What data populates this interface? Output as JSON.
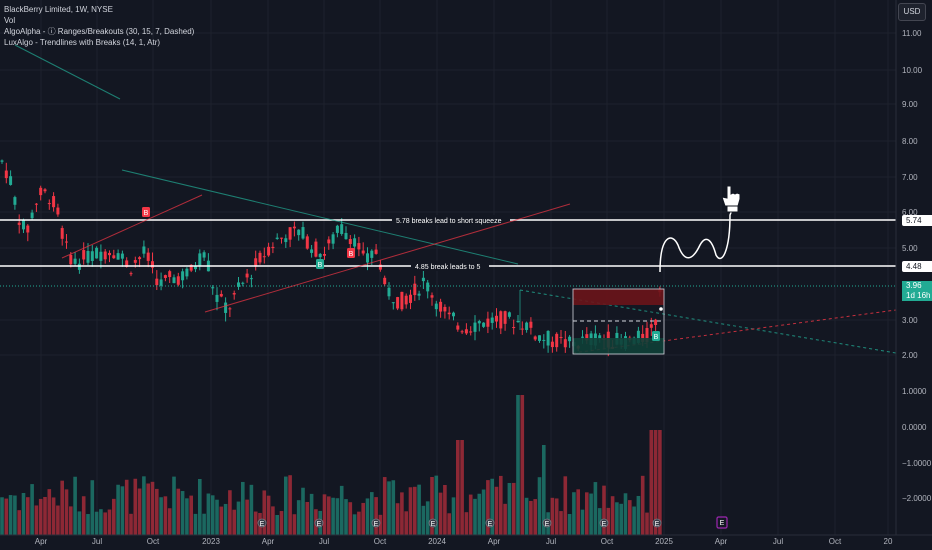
{
  "legend": {
    "title": "BlackBerry Limited, 1W, NYSE",
    "vol": "Vol",
    "ind1": "AlgoAlpha - ⓘ Ranges/Breakouts (30, 15, 7, Dashed)",
    "ind2": "LuxAlgo - Trendlines with Breaks (14, 1, Atr)"
  },
  "currency": "USD",
  "price_axis": [
    "11.00",
    "10.00",
    "9.00",
    "8.00",
    "7.00",
    "6.00",
    "5.00",
    "3.00",
    "2.00"
  ],
  "vol_axis": [
    "1.0000",
    "0.0000",
    "−1.0000",
    "−2.0000"
  ],
  "time_axis": [
    "Apr",
    "Jul",
    "Oct",
    "2023",
    "Apr",
    "Jul",
    "Oct",
    "2024",
    "Apr",
    "Jul",
    "Oct",
    "2025",
    "Apr",
    "Jul",
    "Oct",
    "20"
  ],
  "tags": {
    "level_574": "5.74",
    "level_448": "4.48",
    "last_price": "3.96",
    "countdown": "1d 16h"
  },
  "annotations": {
    "line_578": "5.78 breaks lead to short squeeze",
    "line_485": "4.85 break leads to 5",
    "b": "B",
    "e": "E"
  },
  "colors": {
    "bg": "#131722",
    "up": "#22ab94",
    "down": "#f23645",
    "grid": "#1e222d",
    "white": "#ffffff"
  }
}
